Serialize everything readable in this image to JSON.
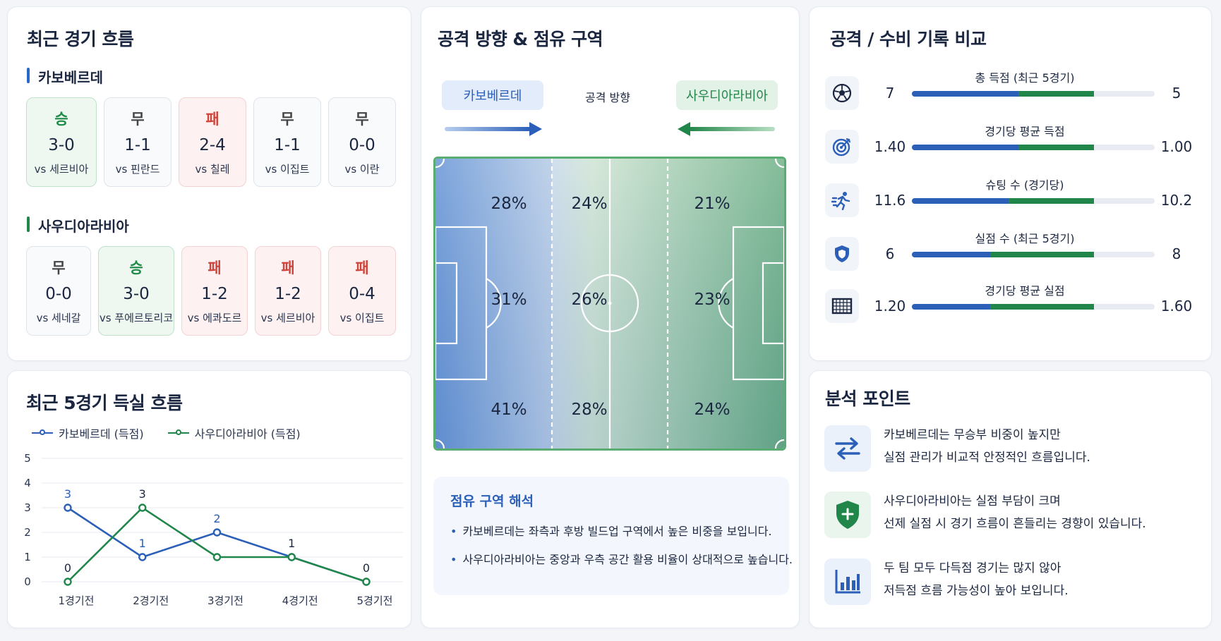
{
  "recent": {
    "title": "최근 경기 흐름",
    "team_a": {
      "name": "카보베르데",
      "matches": [
        {
          "result": "승",
          "score": "3-0",
          "opponent": "vs 세르비아",
          "type": "win"
        },
        {
          "result": "무",
          "score": "1-1",
          "opponent": "vs 핀란드",
          "type": "draw"
        },
        {
          "result": "패",
          "score": "2-4",
          "opponent": "vs 칠레",
          "type": "loss"
        },
        {
          "result": "무",
          "score": "1-1",
          "opponent": "vs 이집트",
          "type": "draw"
        },
        {
          "result": "무",
          "score": "0-0",
          "opponent": "vs 이란",
          "type": "draw"
        }
      ]
    },
    "team_b": {
      "name": "사우디아라비아",
      "matches": [
        {
          "result": "무",
          "score": "0-0",
          "opponent": "vs 세네갈",
          "type": "draw"
        },
        {
          "result": "승",
          "score": "3-0",
          "opponent": "vs 푸에르토리코",
          "type": "win"
        },
        {
          "result": "패",
          "score": "1-2",
          "opponent": "vs 에콰도르",
          "type": "loss"
        },
        {
          "result": "패",
          "score": "1-2",
          "opponent": "vs 세르비아",
          "type": "loss"
        },
        {
          "result": "패",
          "score": "0-4",
          "opponent": "vs 이집트",
          "type": "loss"
        }
      ]
    }
  },
  "goals_chart": {
    "title": "최근 5경기 득실 흐름",
    "colors": {
      "team_a": "#2b5fb8",
      "team_b": "#21864a"
    }
  },
  "chart_data": {
    "type": "line",
    "title": "최근 5경기 득실 흐름",
    "x": [
      "1경기전",
      "2경기전",
      "3경기전",
      "4경기전",
      "5경기전"
    ],
    "yticks": [
      "0",
      "1",
      "2",
      "3",
      "4",
      "5"
    ],
    "ylim": [
      0,
      5
    ],
    "grid": true,
    "legend": "top-left",
    "series": [
      {
        "name": "카보베르데 (득점)",
        "values": [
          3,
          1,
          2,
          1,
          0
        ]
      },
      {
        "name": "사우디아라비아 (득점)",
        "values": [
          0,
          3,
          1,
          1,
          0
        ]
      }
    ],
    "data_labels": [
      {
        "series": 0,
        "index": 0,
        "text": "3"
      },
      {
        "series": 0,
        "index": 1,
        "text": "1"
      },
      {
        "series": 0,
        "index": 2,
        "text": "2"
      },
      {
        "series": 1,
        "index": 0,
        "text": "0"
      },
      {
        "series": 1,
        "index": 1,
        "text": "3"
      },
      {
        "series": 1,
        "index": 3,
        "text": "1"
      },
      {
        "series": 1,
        "index": 4,
        "text": "0"
      }
    ]
  },
  "pitch": {
    "title": "공격 방향 & 점유 구역",
    "team_a": "카보베르데",
    "team_b": "사우디아라비아",
    "direction_label": "공격 방향",
    "zones": [
      [
        "28%",
        "24%",
        "21%"
      ],
      [
        "31%",
        "26%",
        "23%"
      ],
      [
        "41%",
        "28%",
        "24%"
      ]
    ],
    "interpretation": {
      "title": "점유 구역 해석",
      "lines": [
        "카보베르데는 좌측과 후방 빌드업 구역에서 높은 비중을 보입니다.",
        "사우디아라비아는 중앙과 우측 공간 활용 비율이 상대적으로 높습니다."
      ]
    }
  },
  "comparison": {
    "title": "공격 / 수비 기록 비교",
    "stats": [
      {
        "label": "총 득점 (최근 5경기)",
        "a": "7",
        "b": "5",
        "a_num": 7,
        "b_num": 5,
        "icon": "soccer-ball-icon"
      },
      {
        "label": "경기당 평균 득점",
        "a": "1.40",
        "b": "1.00",
        "a_num": 1.4,
        "b_num": 1.0,
        "icon": "target-icon"
      },
      {
        "label": "슈팅 수 (경기당)",
        "a": "11.6",
        "b": "10.2",
        "a_num": 11.6,
        "b_num": 10.2,
        "icon": "runner-icon"
      },
      {
        "label": "실점 수 (최근 5경기)",
        "a": "6",
        "b": "8",
        "a_num": 6,
        "b_num": 8,
        "icon": "shield-icon"
      },
      {
        "label": "경기당 평균 실점",
        "a": "1.20",
        "b": "1.60",
        "a_num": 1.2,
        "b_num": 1.6,
        "icon": "goal-net-icon"
      }
    ]
  },
  "analysis": {
    "title": "분석 포인트",
    "points": [
      {
        "icon": "swap-arrows-icon",
        "line1": "카보베르데는 무승부 비중이 높지만",
        "line2": "실점 관리가 비교적 안정적인 흐름입니다."
      },
      {
        "icon": "shield-plus-icon",
        "line1": "사우디아라비아는 실점 부담이 크며",
        "line2": "선제 실점 시 경기 흐름이 흔들리는 경향이 있습니다."
      },
      {
        "icon": "bar-chart-icon",
        "line1": "두 팀 모두 다득점 경기는 많지 않아",
        "line2": "저득점 흐름 가능성이 높아 보입니다."
      }
    ]
  }
}
